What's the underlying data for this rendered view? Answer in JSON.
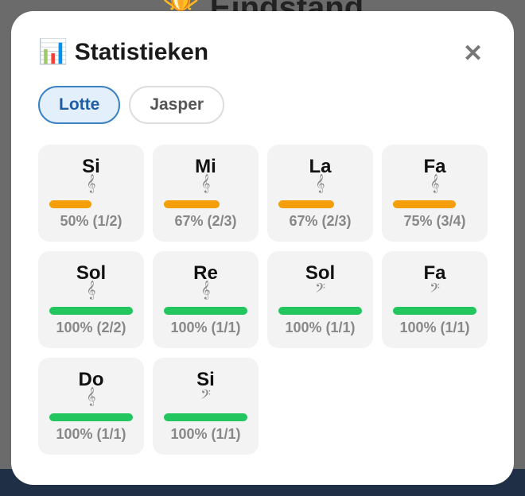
{
  "background": {
    "icon": "🏆",
    "title": "Eindstand"
  },
  "modal": {
    "icon": "📊",
    "title": "Statistieken",
    "close": "✕",
    "tabs": [
      {
        "label": "Lotte",
        "active": true
      },
      {
        "label": "Jasper",
        "active": false
      }
    ],
    "cards": [
      {
        "note": "Si",
        "clef": "𝄞",
        "percent": 50,
        "label": "50% (1/2)",
        "color": "#f59e0b"
      },
      {
        "note": "Mi",
        "clef": "𝄞",
        "percent": 67,
        "label": "67% (2/3)",
        "color": "#f59e0b"
      },
      {
        "note": "La",
        "clef": "𝄞",
        "percent": 67,
        "label": "67% (2/3)",
        "color": "#f59e0b"
      },
      {
        "note": "Fa",
        "clef": "𝄞",
        "percent": 75,
        "label": "75% (3/4)",
        "color": "#f59e0b"
      },
      {
        "note": "Sol",
        "clef": "𝄞",
        "percent": 100,
        "label": "100% (2/2)",
        "color": "#22c55e"
      },
      {
        "note": "Re",
        "clef": "𝄞",
        "percent": 100,
        "label": "100% (1/1)",
        "color": "#22c55e"
      },
      {
        "note": "Sol",
        "clef": "𝄢",
        "percent": 100,
        "label": "100% (1/1)",
        "color": "#22c55e"
      },
      {
        "note": "Fa",
        "clef": "𝄢",
        "percent": 100,
        "label": "100% (1/1)",
        "color": "#22c55e"
      },
      {
        "note": "Do",
        "clef": "𝄞",
        "percent": 100,
        "label": "100% (1/1)",
        "color": "#22c55e"
      },
      {
        "note": "Si",
        "clef": "𝄢",
        "percent": 100,
        "label": "100% (1/1)",
        "color": "#22c55e"
      }
    ]
  }
}
